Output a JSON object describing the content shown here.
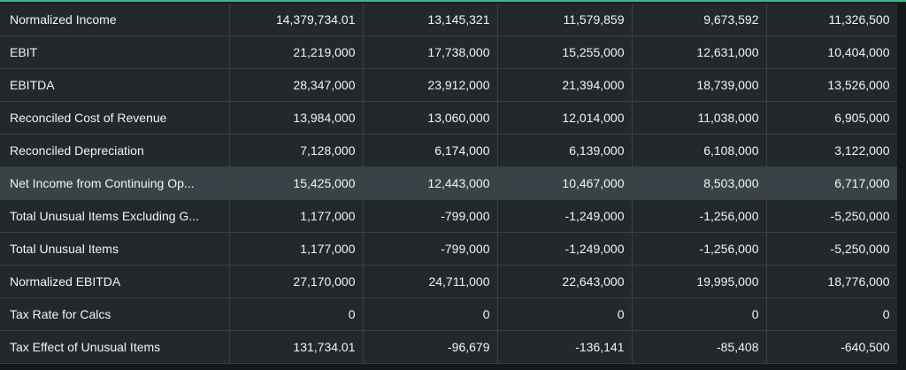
{
  "table": {
    "rows": [
      {
        "label": "Normalized Income",
        "values": [
          "14,379,734.01",
          "13,145,321",
          "11,579,859",
          "9,673,592",
          "11,326,500"
        ]
      },
      {
        "label": "EBIT",
        "values": [
          "21,219,000",
          "17,738,000",
          "15,255,000",
          "12,631,000",
          "10,404,000"
        ]
      },
      {
        "label": "EBITDA",
        "values": [
          "28,347,000",
          "23,912,000",
          "21,394,000",
          "18,739,000",
          "13,526,000"
        ]
      },
      {
        "label": "Reconciled Cost of Revenue",
        "values": [
          "13,984,000",
          "13,060,000",
          "12,014,000",
          "11,038,000",
          "6,905,000"
        ]
      },
      {
        "label": "Reconciled Depreciation",
        "values": [
          "7,128,000",
          "6,174,000",
          "6,139,000",
          "6,108,000",
          "3,122,000"
        ]
      },
      {
        "label": "Net Income from Continuing Op...",
        "values": [
          "15,425,000",
          "12,443,000",
          "10,467,000",
          "8,503,000",
          "6,717,000"
        ],
        "highlighted": true
      },
      {
        "label": "Total Unusual Items Excluding G...",
        "values": [
          "1,177,000",
          "-799,000",
          "-1,249,000",
          "-1,256,000",
          "-5,250,000"
        ]
      },
      {
        "label": "Total Unusual Items",
        "values": [
          "1,177,000",
          "-799,000",
          "-1,249,000",
          "-1,256,000",
          "-5,250,000"
        ]
      },
      {
        "label": "Normalized EBITDA",
        "values": [
          "27,170,000",
          "24,711,000",
          "22,643,000",
          "19,995,000",
          "18,776,000"
        ]
      },
      {
        "label": "Tax Rate for Calcs",
        "values": [
          "0",
          "0",
          "0",
          "0",
          "0"
        ]
      },
      {
        "label": "Tax Effect of Unusual Items",
        "values": [
          "131,734.01",
          "-96,679",
          "-136,141",
          "-85,408",
          "-640,500"
        ]
      }
    ]
  },
  "colors": {
    "accent": "#2fbf86",
    "background": "#15191b",
    "row": "#22282b",
    "row_highlight": "#394246",
    "text": "#f2f4f5"
  }
}
